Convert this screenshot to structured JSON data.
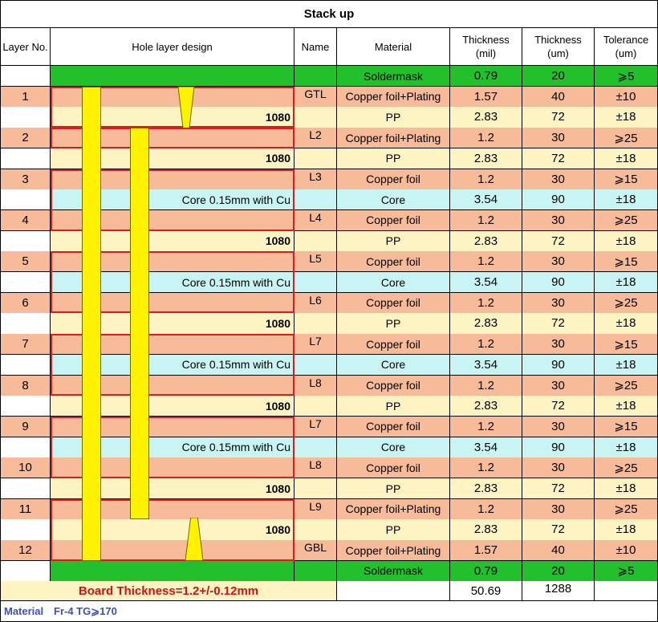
{
  "title": "Stack up",
  "headers": {
    "layer_no": "Layer No.",
    "hole_design": "Hole layer design",
    "name": "Name",
    "material": "Material",
    "thickness_mil": "Thickness\n(mil)",
    "thickness_um": "Thickness\n(um)",
    "tolerance": "Tolerance\n(um)"
  },
  "rows": [
    {
      "layer": "",
      "name": "",
      "material": "Soldermask",
      "mil": "0.79",
      "um": "20",
      "tol": "⩾5",
      "color": "green"
    },
    {
      "layer": "1",
      "name": "GTL",
      "material": "Copper foil+Plating",
      "mil": "1.57",
      "um": "40",
      "tol": "±10",
      "color": "orange"
    },
    {
      "layer": "",
      "name": "",
      "material": "PP",
      "mil": "2.83",
      "um": "72",
      "tol": "±18",
      "color": "cream"
    },
    {
      "layer": "2",
      "name": "L2",
      "material": "Copper foil+Plating",
      "mil": "1.2",
      "um": "30",
      "tol": "⩾25",
      "color": "orange"
    },
    {
      "layer": "",
      "name": "",
      "material": "PP",
      "mil": "2.83",
      "um": "72",
      "tol": "±18",
      "color": "cream"
    },
    {
      "layer": "3",
      "name": "L3",
      "material": "Copper foil",
      "mil": "1.2",
      "um": "30",
      "tol": "⩾15",
      "color": "orange"
    },
    {
      "layer": "",
      "name": "",
      "material": "Core",
      "mil": "3.54",
      "um": "90",
      "tol": "±18",
      "color": "cyan"
    },
    {
      "layer": "4",
      "name": "L4",
      "material": "Copper foil",
      "mil": "1.2",
      "um": "30",
      "tol": "⩾25",
      "color": "orange"
    },
    {
      "layer": "",
      "name": "",
      "material": "PP",
      "mil": "2.83",
      "um": "72",
      "tol": "±18",
      "color": "cream"
    },
    {
      "layer": "5",
      "name": "L5",
      "material": "Copper foil",
      "mil": "1.2",
      "um": "30",
      "tol": "⩾15",
      "color": "orange"
    },
    {
      "layer": "",
      "name": "",
      "material": "Core",
      "mil": "3.54",
      "um": "90",
      "tol": "±18",
      "color": "cyan"
    },
    {
      "layer": "6",
      "name": "L6",
      "material": "Copper foil",
      "mil": "1.2",
      "um": "30",
      "tol": "⩾25",
      "color": "orange"
    },
    {
      "layer": "",
      "name": "",
      "material": "PP",
      "mil": "2.83",
      "um": "72",
      "tol": "±18",
      "color": "cream"
    },
    {
      "layer": "7",
      "name": "L7",
      "material": "Copper foil",
      "mil": "1.2",
      "um": "30",
      "tol": "⩾15",
      "color": "orange"
    },
    {
      "layer": "",
      "name": "",
      "material": "Core",
      "mil": "3.54",
      "um": "90",
      "tol": "±18",
      "color": "cyan"
    },
    {
      "layer": "8",
      "name": "L8",
      "material": "Copper foil",
      "mil": "1.2",
      "um": "30",
      "tol": "⩾25",
      "color": "orange"
    },
    {
      "layer": "",
      "name": "",
      "material": "PP",
      "mil": "2.83",
      "um": "72",
      "tol": "±18",
      "color": "cream"
    },
    {
      "layer": "9",
      "name": "L7",
      "material": "Copper foil",
      "mil": "1.2",
      "um": "30",
      "tol": "⩾15",
      "color": "orange"
    },
    {
      "layer": "",
      "name": "",
      "material": "Core",
      "mil": "3.54",
      "um": "90",
      "tol": "±18",
      "color": "cyan"
    },
    {
      "layer": "10",
      "name": "L8",
      "material": "Copper foil",
      "mil": "1.2",
      "um": "30",
      "tol": "⩾25",
      "color": "orange"
    },
    {
      "layer": "",
      "name": "",
      "material": "PP",
      "mil": "2.83",
      "um": "72",
      "tol": "±18",
      "color": "cream"
    },
    {
      "layer": "11",
      "name": "L9",
      "material": "Copper foil+Plating",
      "mil": "1.2",
      "um": "30",
      "tol": "⩾25",
      "color": "orange"
    },
    {
      "layer": "",
      "name": "",
      "material": "PP",
      "mil": "2.83",
      "um": "72",
      "tol": "±18",
      "color": "cream"
    },
    {
      "layer": "12",
      "name": "GBL",
      "material": "Copper foil+Plating",
      "mil": "1.57",
      "um": "40",
      "tol": "±10",
      "color": "orange"
    },
    {
      "layer": "",
      "name": "",
      "material": "Soldermask",
      "mil": "0.79",
      "um": "20",
      "tol": "⩾5",
      "color": "green"
    }
  ],
  "pp_label": "1080",
  "core_label": "Core 0.15mm with Cu",
  "board_thickness": "Board Thickness=1.2+/-0.12mm",
  "total_mil": "50.69",
  "total_um": "1288",
  "footer": {
    "material_label": "Material",
    "material_value": "Fr-4  TG⩾170"
  },
  "colors": {
    "green": "#22c02a",
    "orange": "#f7bb99",
    "cream": "#fdf3c3",
    "cyan": "#c9f4f4",
    "via": "#fff200",
    "outline": "#e01a1a"
  }
}
